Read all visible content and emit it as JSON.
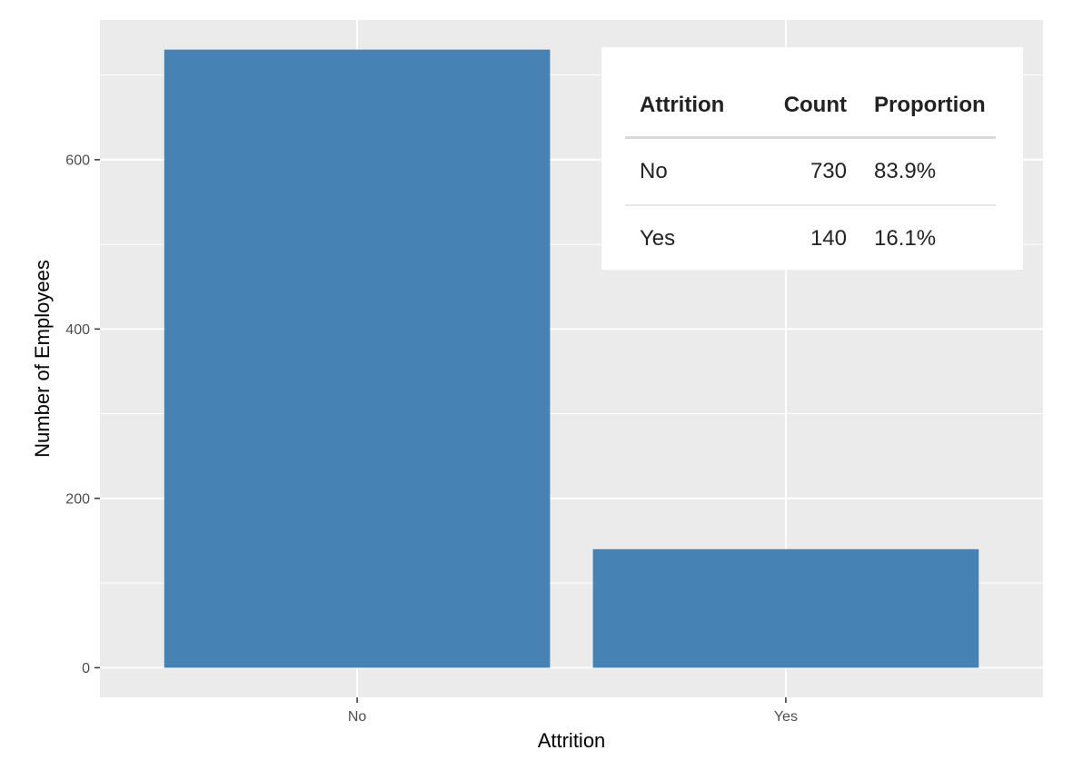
{
  "chart_data": {
    "type": "bar",
    "categories": [
      "No",
      "Yes"
    ],
    "values": [
      730,
      140
    ],
    "xlabel": "Attrition",
    "ylabel": "Number of Employees",
    "ylim": [
      -35,
      765
    ],
    "yticks": [
      0,
      200,
      400,
      600
    ],
    "ytick_labels": [
      "0",
      "200",
      "400",
      "600"
    ],
    "grid": true,
    "bar_color": "#4682B4",
    "panel_color": "#EBEBEB",
    "legend": "none"
  },
  "table": {
    "headers": [
      "Attrition",
      "Count",
      "Proportion"
    ],
    "rows": [
      {
        "attrition": "No",
        "count": "730",
        "proportion": "83.9%"
      },
      {
        "attrition": "Yes",
        "count": "140",
        "proportion": "16.1%"
      }
    ]
  }
}
